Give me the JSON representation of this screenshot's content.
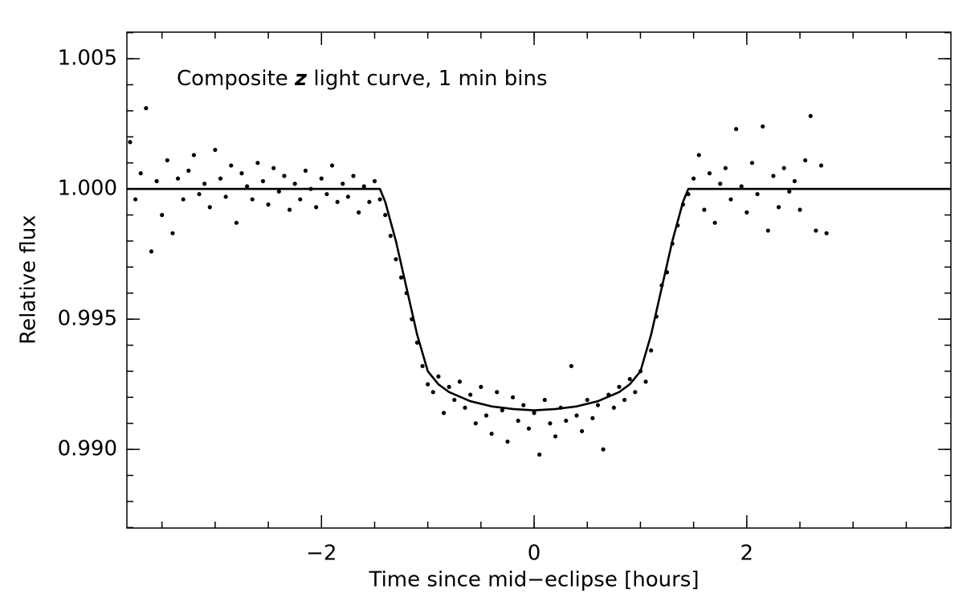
{
  "chart_data": {
    "type": "scatter",
    "annotation": [
      "Composite ",
      "z",
      " light curve, 1 min bins"
    ],
    "x_label": "Time since mid−eclipse [hours]",
    "y_label": "Relative flux",
    "xlim": [
      -3.83,
      3.92
    ],
    "ylim": [
      0.98698,
      1.00602
    ],
    "xticks": [
      {
        "value": -2,
        "label": "−2"
      },
      0,
      2
    ],
    "yticks": [
      {
        "value": 0.99,
        "label": "0.990"
      },
      0.995,
      {
        "value": 1,
        "label": "1.000"
      },
      1.005
    ],
    "x_minor_step": 0.5,
    "y_minor_step": 0.001,
    "series": [
      {
        "type": "scatter",
        "color": "#000000",
        "x": [
          -3.8,
          -3.75,
          -3.7,
          -3.65,
          -3.6,
          -3.55,
          -3.5,
          -3.45,
          -3.4,
          -3.35,
          -3.3,
          -3.25,
          -3.2,
          -3.15,
          -3.1,
          -3.05,
          -3,
          -2.95,
          -2.9,
          -2.85,
          -2.8,
          -2.75,
          -2.7,
          -2.65,
          -2.6,
          -2.55,
          -2.5,
          -2.45,
          -2.4,
          -2.35,
          -2.3,
          -2.25,
          -2.2,
          -2.15,
          -2.1,
          -2.05,
          -2,
          -1.95,
          -1.9,
          -1.85,
          -1.8,
          -1.75,
          -1.7,
          -1.65,
          -1.6,
          -1.55,
          -1.5,
          -1.45,
          -1.4,
          -1.35,
          -1.3,
          -1.25,
          -1.2,
          -1.15,
          -1.1,
          -1.05,
          -1,
          -0.95,
          -0.9,
          -0.85,
          -0.8,
          -0.75,
          -0.7,
          -0.65,
          -0.6,
          -0.55,
          -0.5,
          -0.45,
          -0.4,
          -0.35,
          -0.3,
          -0.25,
          -0.2,
          -0.15,
          -0.1,
          -0.05,
          0,
          0.05,
          0.1,
          0.15,
          0.2,
          0.25,
          0.3,
          0.35,
          0.4,
          0.45,
          0.5,
          0.55,
          0.6,
          0.65,
          0.7,
          0.75,
          0.8,
          0.85,
          0.9,
          0.95,
          1,
          1.05,
          1.1,
          1.15,
          1.2,
          1.25,
          1.3,
          1.35,
          1.4,
          1.45,
          1.5,
          1.55,
          1.6,
          1.65,
          1.7,
          1.75,
          1.8,
          1.85,
          1.9,
          1.95,
          2,
          2.05,
          2.1,
          2.15,
          2.2,
          2.25,
          2.3,
          2.35,
          2.4,
          2.45,
          2.5,
          2.55,
          2.6,
          2.65,
          2.7,
          2.75
        ],
        "values": [
          1.0018,
          0.9996,
          1.0006,
          1.0031,
          0.9976,
          1.0003,
          0.999,
          1.0011,
          0.9983,
          1.0004,
          0.9996,
          1.0007,
          1.0013,
          0.9998,
          1.0002,
          0.9993,
          1.0015,
          1.0004,
          0.9997,
          1.0009,
          0.9987,
          1.0006,
          1.0001,
          0.9996,
          1.001,
          1.0003,
          0.9994,
          1.0008,
          0.9999,
          1.0005,
          0.9992,
          1.0002,
          0.9996,
          1.0007,
          1,
          0.9993,
          1.0004,
          0.9998,
          1.0009,
          0.9995,
          1.0002,
          0.9997,
          1.0005,
          0.9991,
          1.0001,
          0.9995,
          1.0003,
          0.9996,
          0.999,
          0.9982,
          0.9973,
          0.9966,
          0.996,
          0.995,
          0.9941,
          0.9932,
          0.9925,
          0.9922,
          0.9928,
          0.9914,
          0.9924,
          0.9919,
          0.9926,
          0.9916,
          0.9921,
          0.991,
          0.9924,
          0.9913,
          0.9906,
          0.9922,
          0.9915,
          0.9903,
          0.992,
          0.9911,
          0.9917,
          0.9908,
          0.9914,
          0.9898,
          0.9919,
          0.991,
          0.9905,
          0.9916,
          0.9911,
          0.9932,
          0.9913,
          0.9907,
          0.9919,
          0.9912,
          0.9917,
          0.99,
          0.9921,
          0.9916,
          0.9924,
          0.9919,
          0.9927,
          0.9922,
          0.993,
          0.9926,
          0.9938,
          0.9951,
          0.9963,
          0.9968,
          0.9979,
          0.9986,
          0.9994,
          0.9998,
          1.0004,
          1.0013,
          0.9992,
          1.0006,
          0.9987,
          1.0002,
          1.0008,
          0.9996,
          1.0023,
          1.0001,
          0.9991,
          1.001,
          0.9998,
          1.0024,
          0.9984,
          1.0005,
          0.9993,
          1.0008,
          0.9999,
          1.0003,
          0.9992,
          1.0011,
          1.0028,
          0.9984,
          1.0009,
          0.9983
        ]
      },
      {
        "type": "line",
        "color": "#000000",
        "x": [
          -3.83,
          -1.45,
          -1.4,
          -1.3,
          -1.2,
          -1.1,
          -1,
          -0.9,
          -0.8,
          -0.6,
          -0.4,
          -0.2,
          0,
          0.2,
          0.4,
          0.6,
          0.8,
          0.9,
          1,
          1.1,
          1.2,
          1.3,
          1.4,
          1.45,
          3.92
        ],
        "values": [
          1,
          1,
          0.9995,
          0.998,
          0.9962,
          0.9944,
          0.993,
          0.9925,
          0.9922,
          0.99185,
          0.99165,
          0.99155,
          0.9915,
          0.99155,
          0.99165,
          0.99185,
          0.9922,
          0.9925,
          0.993,
          0.9944,
          0.9962,
          0.998,
          0.9995,
          1,
          1
        ]
      }
    ]
  }
}
